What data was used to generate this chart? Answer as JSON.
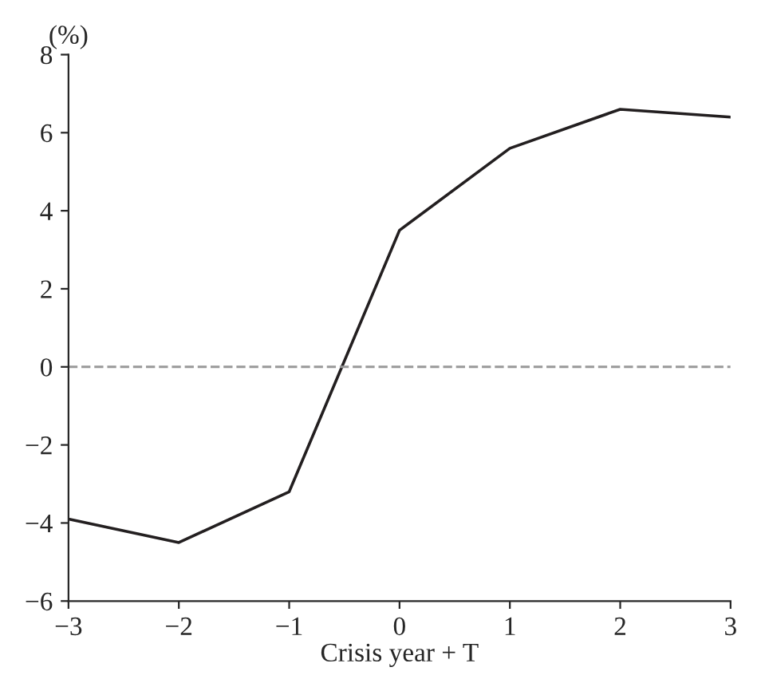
{
  "chart_data": {
    "type": "line",
    "xlabel": "Crisis year + T",
    "ylabel": "(%)",
    "x": [
      -3,
      -2,
      -1,
      0,
      1,
      2,
      3
    ],
    "series": [
      {
        "color": "#231f20",
        "values": [
          -3.9,
          -4.5,
          -3.2,
          3.5,
          5.6,
          6.6,
          6.4
        ]
      }
    ],
    "xlim": [
      -3,
      3
    ],
    "xticks": [
      {
        "value": -3,
        "label": "−3"
      },
      {
        "value": -2,
        "label": "−2"
      },
      {
        "value": -1,
        "label": "−1"
      },
      0,
      1,
      2,
      3
    ],
    "ylim": [
      -6,
      8
    ],
    "yticks": [
      {
        "value": -6,
        "label": "−6"
      },
      {
        "value": -4,
        "label": "−4"
      },
      {
        "value": -2,
        "label": "−2"
      },
      0,
      2,
      4,
      6,
      8
    ],
    "ref_lines": [
      {
        "axis": "y",
        "value": 0,
        "color": "#999999",
        "line_style": "dashed"
      }
    ],
    "grid": false,
    "line_style": "solid",
    "marker": "none"
  }
}
